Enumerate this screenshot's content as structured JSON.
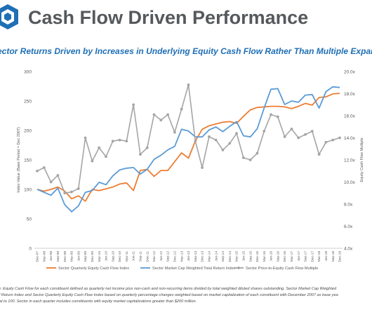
{
  "header": {
    "title": "Cash Flow Driven Performance",
    "subtitle": "ector Returns Driven by Increases in Underlying Equity Cash Flow Rather Than Multiple Expans",
    "brand_color": "#1f6fb5"
  },
  "notes": [
    "re: Equity Cash Flow for each constituent defined as quarterly net income plus non-cash and non-recurring items divided by total weighted diluted shares outstanding. Sector Market Cap Weighted",
    "al Return Index and Sector Quarterly Equity Cash Flow Index based on quarterly percentage changes weighted based on market capitalization of each constituent with December 2007 as base yea",
    "ual to 100. Sector in each quarter includes constituents with equity market capitalizations greater than $200 million."
  ],
  "chart_data": {
    "type": "line",
    "title": "",
    "xlabel": "",
    "ylabel": "Index Value (Base Period = Dec 2007)",
    "y2label": "Equity Cash Flow Multiple",
    "ylim": [
      0,
      300
    ],
    "yticks": [
      "0",
      "50",
      "100",
      "150",
      "200",
      "250",
      "300"
    ],
    "y2lim": [
      4,
      20
    ],
    "y2ticks": [
      "4.0x",
      "6.0x",
      "8.0x",
      "10.0x",
      "12.0x",
      "14.0x",
      "16.0x",
      "18.0x",
      "20.0x"
    ],
    "grid": false,
    "legend_position": "bottom",
    "categories": [
      "Dec-07",
      "Mar-08",
      "Jun-08",
      "Sep-08",
      "Dec-08",
      "Mar-09",
      "Jun-09",
      "Sep-09",
      "Dec-09",
      "Mar-10",
      "Jun-10",
      "Sep-10",
      "Dec-10",
      "Mar-11",
      "Jun-11",
      "Sep-11",
      "Dec-11",
      "Mar-12",
      "Jun-12",
      "Sep-12",
      "Dec-12",
      "Mar-13",
      "Jun-13",
      "Sep-13",
      "Dec-13",
      "Mar-14",
      "Jun-14",
      "Sep-14",
      "Dec-14",
      "Mar-15",
      "Jun-15",
      "Sep-15",
      "Dec-15",
      "Mar-16",
      "Jun-16",
      "Sep-16",
      "Dec-16",
      "Mar-17",
      "Jun-17",
      "Sep-17",
      "Dec-17",
      "Mar-18",
      "Jun-18",
      "Sep-18",
      "Dec-18"
    ],
    "series": [
      {
        "name": "Sector Quarterly Equity Cash Flow Index",
        "axis": "left",
        "color": "#ed7d31",
        "values": [
          100,
          97,
          100,
          104,
          97,
          84,
          89,
          80,
          100,
          98,
          101,
          104,
          109,
          111,
          98,
          132,
          134,
          122,
          132,
          132,
          147,
          162,
          153,
          182,
          202,
          208,
          211,
          214,
          215,
          212,
          224,
          235,
          239,
          240,
          241,
          241,
          240,
          237,
          241,
          246,
          243,
          256,
          257,
          262,
          263
        ]
      },
      {
        "name": "Sector Market Cap Weighted Total Return Index",
        "axis": "left",
        "color": "#5b9bd5",
        "values": [
          100,
          95,
          90,
          102,
          74,
          62,
          72,
          95,
          98,
          112,
          108,
          123,
          133,
          136,
          137,
          126,
          134,
          151,
          158,
          167,
          173,
          202,
          199,
          189,
          189,
          201,
          206,
          198,
          207,
          215,
          191,
          189,
          203,
          238,
          270,
          271,
          244,
          250,
          248,
          260,
          261,
          238,
          266,
          274,
          273
        ]
      },
      {
        "name": "Sector Price-to-Equity Cash Flow Multiple",
        "axis": "right",
        "color": "#a5a5a5",
        "values": [
          11.0,
          11.3,
          10.0,
          10.6,
          9.0,
          9.1,
          9.4,
          14.0,
          11.9,
          13.1,
          12.3,
          13.7,
          13.8,
          13.7,
          17.0,
          12.5,
          13.1,
          16.1,
          15.6,
          16.1,
          14.5,
          16.6,
          18.8,
          13.7,
          11.3,
          14.1,
          13.8,
          12.9,
          13.5,
          14.4,
          12.2,
          12.0,
          12.6,
          14.6,
          16.1,
          15.9,
          14.1,
          14.8,
          14.0,
          14.3,
          14.6,
          12.5,
          13.6,
          13.8,
          14.0
        ]
      }
    ]
  }
}
